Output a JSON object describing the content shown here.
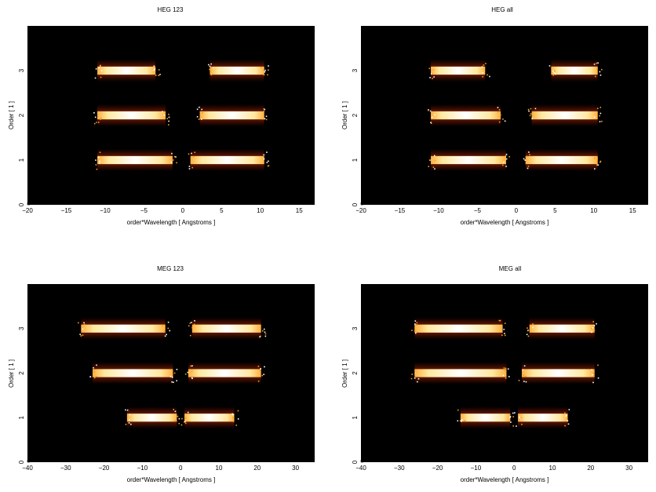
{
  "chart_data": [
    {
      "type": "heatmap",
      "title": "HEG 123",
      "xlabel": "order*Wavelength [ Angstroms ]",
      "ylabel": "Order [ 1 ]",
      "xlim": [
        -20,
        17
      ],
      "ylim": [
        0,
        4
      ],
      "xticks": [
        -20,
        -15,
        -10,
        -5,
        0,
        5,
        10,
        15
      ],
      "yticks": [
        0,
        1,
        2,
        3
      ],
      "colormap": [
        "#000000",
        "#7a1500",
        "#d04000",
        "#ff9a20",
        "#ffe080",
        "#ffffff"
      ],
      "bands": [
        {
          "order": 3,
          "x_range": [
            -11,
            -3.5
          ]
        },
        {
          "order": 3,
          "x_range": [
            3.5,
            10.5
          ]
        },
        {
          "order": 2,
          "x_range": [
            -11,
            -2.2
          ]
        },
        {
          "order": 2,
          "x_range": [
            2.2,
            10.5
          ]
        },
        {
          "order": 1,
          "x_range": [
            -11,
            -1.3
          ]
        },
        {
          "order": 1,
          "x_range": [
            1.0,
            10.5
          ]
        }
      ]
    },
    {
      "type": "heatmap",
      "title": "HEG all",
      "xlabel": "order*Wavelength [ Angstroms ]",
      "ylabel": "Order [ 1 ]",
      "xlim": [
        -20,
        17
      ],
      "ylim": [
        0,
        4
      ],
      "xticks": [
        -20,
        -15,
        -10,
        -5,
        0,
        5,
        10,
        15
      ],
      "yticks": [
        0,
        1,
        2,
        3
      ],
      "colormap": [
        "#000000",
        "#7a1500",
        "#d04000",
        "#ff9a20",
        "#ffe080",
        "#ffffff"
      ],
      "bands": [
        {
          "order": 3,
          "x_range": [
            -11,
            -4
          ]
        },
        {
          "order": 3,
          "x_range": [
            4.5,
            10.5
          ]
        },
        {
          "order": 2,
          "x_range": [
            -11,
            -2
          ]
        },
        {
          "order": 2,
          "x_range": [
            2,
            10.5
          ]
        },
        {
          "order": 1,
          "x_range": [
            -11,
            -1.3
          ]
        },
        {
          "order": 1,
          "x_range": [
            1.2,
            10.5
          ]
        }
      ]
    },
    {
      "type": "heatmap",
      "title": "MEG 123",
      "xlabel": "order*Wavelength [ Angstroms ]",
      "ylabel": "Order [ 1 ]",
      "xlim": [
        -40,
        35
      ],
      "ylim": [
        0,
        4
      ],
      "xticks": [
        -40,
        -30,
        -20,
        -10,
        0,
        10,
        20,
        30
      ],
      "yticks": [
        0,
        1,
        2,
        3
      ],
      "colormap": [
        "#000000",
        "#7a1500",
        "#d04000",
        "#ff9a20",
        "#ffe080",
        "#ffffff"
      ],
      "bands": [
        {
          "order": 3,
          "x_range": [
            -26,
            -4
          ]
        },
        {
          "order": 3,
          "x_range": [
            3,
            21
          ]
        },
        {
          "order": 2,
          "x_range": [
            -23,
            -2
          ]
        },
        {
          "order": 2,
          "x_range": [
            2,
            21
          ]
        },
        {
          "order": 1,
          "x_range": [
            -14,
            -1
          ]
        },
        {
          "order": 1,
          "x_range": [
            1,
            14
          ]
        }
      ]
    },
    {
      "type": "heatmap",
      "title": "MEG all",
      "xlabel": "order*Wavelength [ Angstroms ]",
      "ylabel": "Order [ 1 ]",
      "xlim": [
        -40,
        35
      ],
      "ylim": [
        0,
        4
      ],
      "xticks": [
        -40,
        -30,
        -20,
        -10,
        0,
        10,
        20,
        30
      ],
      "yticks": [
        0,
        1,
        2,
        3
      ],
      "colormap": [
        "#000000",
        "#7a1500",
        "#d04000",
        "#ff9a20",
        "#ffe080",
        "#ffffff"
      ],
      "bands": [
        {
          "order": 3,
          "x_range": [
            -26,
            -3
          ]
        },
        {
          "order": 3,
          "x_range": [
            4,
            21
          ]
        },
        {
          "order": 2,
          "x_range": [
            -26,
            -2
          ]
        },
        {
          "order": 2,
          "x_range": [
            2,
            21
          ]
        },
        {
          "order": 1,
          "x_range": [
            -14,
            -1
          ]
        },
        {
          "order": 1,
          "x_range": [
            1,
            14
          ]
        }
      ]
    }
  ]
}
